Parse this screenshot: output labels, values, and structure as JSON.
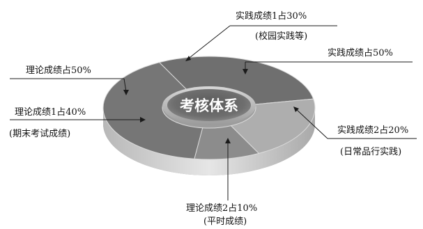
{
  "center": {
    "title": "考核体系"
  },
  "labels": {
    "practice_total": "实践成绩占50%",
    "practice_1": "实践成绩1占30%",
    "practice_1_note": "(校园实践等)",
    "practice_2": "实践成绩2占20%",
    "practice_2_note": "(日常品行实践)",
    "theory_total": "理论成绩占50%",
    "theory_1": "理论成绩1占40%",
    "theory_1_note": "(期末考试成绩)",
    "theory_2": "理论成绩2占10%",
    "theory_2_note": "(平时成绩)"
  },
  "segments": [
    {
      "name": "practice_1",
      "share": 30,
      "color": "#6f6f6f"
    },
    {
      "name": "practice_2",
      "share": 20,
      "color": "#aeaeae"
    },
    {
      "name": "theory_2",
      "share": 10,
      "color": "#8c8c8c"
    },
    {
      "name": "theory_1",
      "share": 40,
      "color": "#767676"
    }
  ]
}
